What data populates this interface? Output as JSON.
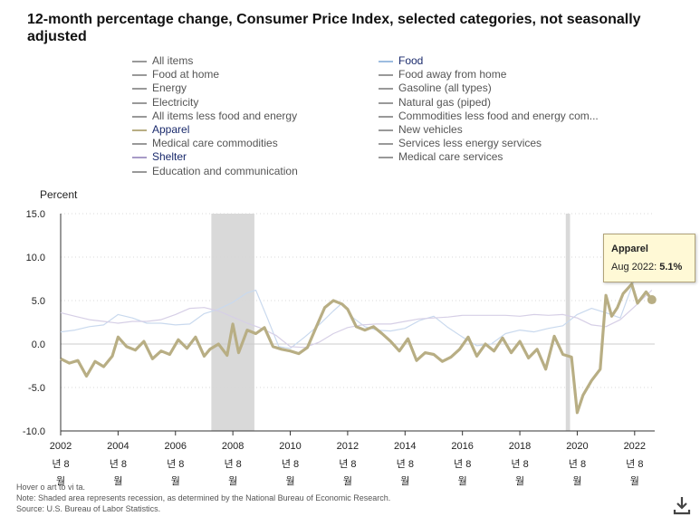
{
  "title": "12-month percentage change, Consumer Price Index, selected categories, not seasonally adjusted",
  "legend": [
    {
      "label": "All items",
      "color": "#999999",
      "col": 0
    },
    {
      "label": "Food at home",
      "color": "#999999",
      "col": 0
    },
    {
      "label": "Energy",
      "color": "#999999",
      "col": 0
    },
    {
      "label": "Electricity",
      "color": "#999999",
      "col": 0
    },
    {
      "label": "All items less food and energy",
      "color": "#999999",
      "col": 0
    },
    {
      "label": "Apparel",
      "color": "#b8ae84",
      "col": 0,
      "active": true
    },
    {
      "label": "Medical care commodities",
      "color": "#999999",
      "col": 0
    },
    {
      "label": "Shelter",
      "color": "#a89bc7",
      "col": 0,
      "active": true
    },
    {
      "label": "Education and communication",
      "color": "#999999",
      "col": 0
    },
    {
      "label": "Food",
      "color": "#9dbde0",
      "col": 1,
      "active": true
    },
    {
      "label": "Food away from home",
      "color": "#999999",
      "col": 1
    },
    {
      "label": "Gasoline (all types)",
      "color": "#999999",
      "col": 1
    },
    {
      "label": "Natural gas (piped)",
      "color": "#999999",
      "col": 1
    },
    {
      "label": "Commodities less food and energy com...",
      "color": "#999999",
      "col": 1
    },
    {
      "label": "New vehicles",
      "color": "#999999",
      "col": 1
    },
    {
      "label": "Services less energy services",
      "color": "#999999",
      "col": 1
    },
    {
      "label": "Medical care services",
      "color": "#999999",
      "col": 1
    }
  ],
  "tooltip": {
    "name": "Apparel",
    "date": "Aug 2022:",
    "value": "5.1%"
  },
  "notes": {
    "hover": "Hover o    art to vi       ta.",
    "note": "Note: Shaded area represents recession, as determined by the National Bureau of Economic Research.",
    "source": "Source: U.S. Bureau of Labor Statistics."
  },
  "chart_data": {
    "type": "line",
    "ylabel": "Percent",
    "ylim": [
      -10,
      15
    ],
    "yticks": [
      "15.0",
      "10.0",
      "5.0",
      "0.0",
      "-5.0",
      "-10.0"
    ],
    "xlim": [
      2002.0,
      2022.7
    ],
    "xticks": [
      {
        "year": "2002",
        "sub": "년 8",
        "mon": "월"
      },
      {
        "year": "2004",
        "sub": "년 8",
        "mon": "월"
      },
      {
        "year": "2006",
        "sub": "년 8",
        "mon": "월"
      },
      {
        "year": "2008",
        "sub": "년 8",
        "mon": "월"
      },
      {
        "year": "2010",
        "sub": "년 8",
        "mon": "월"
      },
      {
        "year": "2012",
        "sub": "년 8",
        "mon": "월"
      },
      {
        "year": "2014",
        "sub": "년 8",
        "mon": "월"
      },
      {
        "year": "2016",
        "sub": "년 8",
        "mon": "월"
      },
      {
        "year": "2018",
        "sub": "년 8",
        "mon": "월"
      },
      {
        "year": "2020",
        "sub": "년 8",
        "mon": "월"
      },
      {
        "year": "2022",
        "sub": "년 8",
        "mon": "월"
      }
    ],
    "recessions": [
      [
        2007.25,
        2008.75
      ],
      [
        2019.6,
        2019.75
      ]
    ],
    "series": [
      {
        "name": "Apparel",
        "color": "#b8ae84",
        "width": 3.2,
        "x": [
          2002.0,
          2002.3,
          2002.6,
          2002.9,
          2003.2,
          2003.5,
          2003.8,
          2004.0,
          2004.3,
          2004.6,
          2004.9,
          2005.2,
          2005.5,
          2005.8,
          2006.1,
          2006.4,
          2006.7,
          2007.0,
          2007.2,
          2007.5,
          2007.8,
          2008.0,
          2008.2,
          2008.5,
          2008.8,
          2009.1,
          2009.4,
          2009.7,
          2010.0,
          2010.3,
          2010.6,
          2010.9,
          2011.2,
          2011.5,
          2011.8,
          2012.0,
          2012.3,
          2012.6,
          2012.9,
          2013.2,
          2013.5,
          2013.8,
          2014.1,
          2014.4,
          2014.7,
          2015.0,
          2015.3,
          2015.6,
          2015.9,
          2016.2,
          2016.5,
          2016.8,
          2017.1,
          2017.4,
          2017.7,
          2018.0,
          2018.3,
          2018.6,
          2018.9,
          2019.2,
          2019.5,
          2019.8,
          2020.0,
          2020.2,
          2020.5,
          2020.8,
          2021.0,
          2021.2,
          2021.4,
          2021.6,
          2021.9,
          2022.1,
          2022.4,
          2022.6
        ],
        "y": [
          -1.7,
          -2.2,
          -1.9,
          -3.7,
          -2.0,
          -2.6,
          -1.4,
          0.8,
          -0.3,
          -0.7,
          0.3,
          -1.7,
          -0.8,
          -1.2,
          0.5,
          -0.5,
          0.8,
          -1.4,
          -0.6,
          0.0,
          -1.3,
          2.3,
          -1.0,
          1.6,
          1.2,
          1.9,
          -0.3,
          -0.6,
          -0.8,
          -1.1,
          -0.4,
          1.9,
          4.2,
          5.0,
          4.6,
          4.0,
          2.0,
          1.6,
          2.0,
          1.2,
          0.3,
          -0.8,
          0.6,
          -1.9,
          -1.0,
          -1.2,
          -2.0,
          -1.5,
          -0.6,
          0.8,
          -1.4,
          0.0,
          -0.8,
          0.7,
          -1.0,
          0.3,
          -1.6,
          -0.6,
          -2.9,
          0.9,
          -1.2,
          -1.5,
          -7.9,
          -5.9,
          -4.2,
          -2.9,
          5.6,
          3.2,
          4.2,
          5.8,
          6.9,
          4.7,
          6.0,
          5.1
        ]
      },
      {
        "name": "Food",
        "color": "#c9d9ee",
        "width": 1.2,
        "x": [
          2002.0,
          2002.5,
          2003.0,
          2003.5,
          2004.0,
          2004.5,
          2005.0,
          2005.5,
          2006.0,
          2006.5,
          2007.0,
          2007.5,
          2008.0,
          2008.5,
          2008.8,
          2009.2,
          2009.6,
          2010.0,
          2010.5,
          2011.0,
          2011.5,
          2011.8,
          2012.2,
          2012.6,
          2013.0,
          2013.5,
          2014.0,
          2014.5,
          2015.0,
          2015.5,
          2016.0,
          2016.5,
          2017.0,
          2017.5,
          2018.0,
          2018.5,
          2019.0,
          2019.5,
          2020.0,
          2020.5,
          2021.0,
          2021.5,
          2022.0,
          2022.6
        ],
        "y": [
          1.4,
          1.6,
          2.0,
          2.2,
          3.4,
          3.0,
          2.4,
          2.4,
          2.2,
          2.3,
          3.5,
          4.0,
          4.8,
          5.9,
          6.2,
          3.0,
          -0.3,
          -0.5,
          0.8,
          2.2,
          3.8,
          4.7,
          3.0,
          2.0,
          1.6,
          1.5,
          1.8,
          2.7,
          3.2,
          1.9,
          0.8,
          -0.2,
          0.0,
          1.2,
          1.6,
          1.4,
          1.8,
          2.1,
          3.4,
          4.1,
          3.6,
          3.0,
          7.5,
          11.4
        ]
      },
      {
        "name": "Shelter",
        "color": "#d6cfe6",
        "width": 1.2,
        "x": [
          2002.0,
          2002.5,
          2003.0,
          2003.5,
          2004.0,
          2004.5,
          2005.0,
          2005.5,
          2006.0,
          2006.5,
          2007.0,
          2007.5,
          2008.0,
          2008.5,
          2009.0,
          2009.5,
          2010.0,
          2010.5,
          2011.0,
          2011.5,
          2012.0,
          2012.5,
          2013.0,
          2013.5,
          2014.0,
          2014.5,
          2015.0,
          2015.5,
          2016.0,
          2016.5,
          2017.0,
          2017.5,
          2018.0,
          2018.5,
          2019.0,
          2019.5,
          2020.0,
          2020.5,
          2021.0,
          2021.5,
          2022.0,
          2022.6
        ],
        "y": [
          3.6,
          3.2,
          2.8,
          2.6,
          2.4,
          2.6,
          2.6,
          2.8,
          3.4,
          4.1,
          4.2,
          3.8,
          3.1,
          2.4,
          1.8,
          1.0,
          -0.3,
          -0.4,
          0.2,
          1.2,
          1.9,
          2.2,
          2.3,
          2.3,
          2.6,
          2.9,
          3.0,
          3.1,
          3.3,
          3.3,
          3.3,
          3.3,
          3.2,
          3.4,
          3.3,
          3.4,
          3.0,
          2.2,
          2.0,
          2.8,
          4.3,
          6.2
        ]
      }
    ]
  }
}
